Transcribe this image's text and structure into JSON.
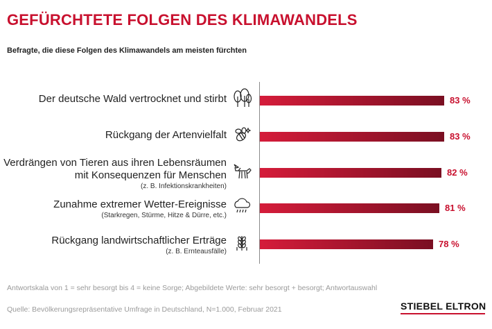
{
  "title": "GEFÜRCHTETE FOLGEN DES KLIMAWANDELS",
  "subtitle": "Befragte, die diese Folgen des Klimawandels am meisten fürchten",
  "chart_data": {
    "type": "bar",
    "orientation": "horizontal",
    "title": "GEFÜRCHTETE FOLGEN DES KLIMAWANDELS",
    "subtitle": "Befragte, die diese Folgen des Klimawandels am meisten fürchten",
    "categories": [
      "Der deutsche Wald vertrocknet und stirbt",
      "Rückgang der Artenvielfalt",
      "Verdrängen von Tieren aus ihren Lebensräumen mit Konsequenzen für Menschen",
      "Zunahme extremer Wetter-Ereignisse",
      "Rückgang landwirtschaftlicher Erträge"
    ],
    "values": [
      83,
      83,
      82,
      81,
      78
    ],
    "unit": "%",
    "xlim": [
      0,
      100
    ],
    "grid": false,
    "legend": "none"
  },
  "rows": [
    {
      "lines": [
        "Der deutsche Wald vertrocknet und stirbt"
      ],
      "note": "",
      "icon": "trees-icon",
      "value_label": "83 %"
    },
    {
      "lines": [
        "Rückgang der Artenvielfalt"
      ],
      "note": "",
      "icon": "bee-icon",
      "value_label": "83 %"
    },
    {
      "lines": [
        "Verdrängen von Tieren aus ihren Lebensräumen",
        "mit Konsequenzen für Menschen"
      ],
      "note": "(z. B. Infektionskrankheiten)",
      "icon": "fox-icon",
      "value_label": "82 %"
    },
    {
      "lines": [
        "Zunahme extremer Wetter-Ereignisse"
      ],
      "note": "(Starkregen, Stürme, Hitze & Dürre, etc.)",
      "icon": "storm-cloud-icon",
      "value_label": "81 %"
    },
    {
      "lines": [
        "Rückgang landwirtschaftlicher Erträge"
      ],
      "note": "(z. B. Ernteausfälle)",
      "icon": "wheat-icon",
      "value_label": "78 %"
    }
  ],
  "footnote": "Antwortskala von 1 = sehr besorgt bis 4 = keine Sorge; Abgebildete Werte: sehr besorgt + besorgt; Antwortauswahl",
  "source": "Quelle: Bevölkerungsrepräsentative Umfrage in Deutschland, N=1.000, Februar 2021",
  "brand": "STIEBEL ELTRON",
  "colors": {
    "accent": "#c8102e",
    "bar_start": "#d51c3a",
    "bar_end": "#7a0f22",
    "muted": "#9a9a9a"
  }
}
